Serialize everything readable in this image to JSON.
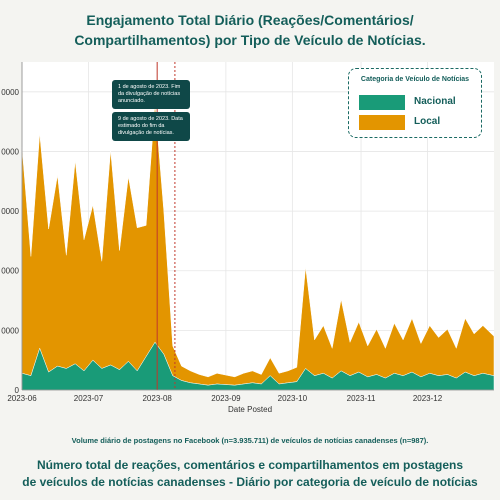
{
  "title_line1": "Engajamento Total Diário (Reações/Comentários/",
  "title_line2": "Compartilhamentos) por Tipo de Veículo de Notícias.",
  "annotation1": "1 de agosto de 2023. Fim da divulgação de notícias anunciado.",
  "annotation2": "9 de agosto de 2023. Data estimado do fim da divulgação de notícias.",
  "footnote": "Volume diário de postagens no Facebook (n=3.935.711) de veículos de notícias canadenses (n=987).",
  "subtitle_line1": "Número total de reações, comentários e compartilhamentos em postagens",
  "subtitle_line2": "de veículos de notícias canadenses - Diário por categoria de veículo de notícias",
  "colors": {
    "nacional": "#199b78",
    "local": "#e39500",
    "background": "#f4f4f1",
    "plot_bg": "#ffffff"
  },
  "chart_data": {
    "type": "area",
    "stacked": true,
    "title": "Engajamento Total Diário (Reações/Comentários/Compartilhamentos) por Tipo de Veículo de Notícias.",
    "xlabel": "Date Posted",
    "ylabel": "",
    "xlim": [
      "2023-06-01",
      "2023-12-31"
    ],
    "ylim": [
      0,
      275000
    ],
    "y_tick_labels": [
      "0",
      "0000",
      "0000",
      "0000",
      "0000",
      "0000"
    ],
    "y_tick_values": [
      0,
      50000,
      100000,
      150000,
      200000,
      250000
    ],
    "x_tick_labels": [
      "2023-06",
      "2023-07",
      "2023-08",
      "2023-09",
      "2023-10",
      "2023-11",
      "2023-12"
    ],
    "x_tick_dates": [
      "2023-06-01",
      "2023-07-01",
      "2023-08-01",
      "2023-09-01",
      "2023-10-01",
      "2023-11-01",
      "2023-12-01"
    ],
    "grid": true,
    "legend_title": "Categoria de Veículo de Notícias",
    "legend_position": "top-right",
    "vlines": [
      "2023-08-01",
      "2023-08-09"
    ],
    "x": [
      "2023-06-01",
      "2023-06-05",
      "2023-06-09",
      "2023-06-13",
      "2023-06-17",
      "2023-06-21",
      "2023-06-25",
      "2023-06-29",
      "2023-07-03",
      "2023-07-07",
      "2023-07-11",
      "2023-07-15",
      "2023-07-19",
      "2023-07-23",
      "2023-07-27",
      "2023-07-31",
      "2023-08-04",
      "2023-08-08",
      "2023-08-12",
      "2023-08-16",
      "2023-08-20",
      "2023-08-24",
      "2023-08-28",
      "2023-09-01",
      "2023-09-05",
      "2023-09-09",
      "2023-09-13",
      "2023-09-17",
      "2023-09-21",
      "2023-09-25",
      "2023-09-29",
      "2023-10-03",
      "2023-10-07",
      "2023-10-11",
      "2023-10-15",
      "2023-10-19",
      "2023-10-23",
      "2023-10-27",
      "2023-10-31",
      "2023-11-04",
      "2023-11-08",
      "2023-11-12",
      "2023-11-16",
      "2023-11-20",
      "2023-11-24",
      "2023-11-28",
      "2023-12-02",
      "2023-12-06",
      "2023-12-10",
      "2023-12-14",
      "2023-12-18",
      "2023-12-22",
      "2023-12-26",
      "2023-12-31"
    ],
    "series": [
      {
        "name": "Nacional",
        "color": "#199b78",
        "values": [
          14000,
          12000,
          35000,
          15000,
          20000,
          18000,
          22000,
          16000,
          25000,
          18000,
          21000,
          17000,
          24000,
          16000,
          28000,
          40000,
          30000,
          12000,
          8000,
          6000,
          5000,
          4000,
          5000,
          4500,
          4000,
          5000,
          6000,
          5000,
          12000,
          5000,
          6000,
          7000,
          18000,
          12000,
          14000,
          10000,
          16000,
          12000,
          15000,
          11000,
          13000,
          10000,
          14000,
          12000,
          15000,
          11000,
          14000,
          12000,
          13000,
          10000,
          15000,
          12000,
          14000,
          12000
        ]
      },
      {
        "name": "Local",
        "color": "#e39500",
        "values": [
          190000,
          100000,
          180000,
          120000,
          160000,
          95000,
          170000,
          110000,
          130000,
          90000,
          180000,
          100000,
          155000,
          120000,
          110000,
          200000,
          120000,
          25000,
          12000,
          10000,
          8000,
          7000,
          9000,
          8000,
          7000,
          9000,
          10000,
          8000,
          15000,
          9000,
          10000,
          12000,
          85000,
          30000,
          40000,
          25000,
          60000,
          28000,
          42000,
          26000,
          38000,
          25000,
          42000,
          30000,
          45000,
          28000,
          40000,
          32000,
          38000,
          25000,
          45000,
          35000,
          40000,
          33000
        ]
      }
    ]
  }
}
